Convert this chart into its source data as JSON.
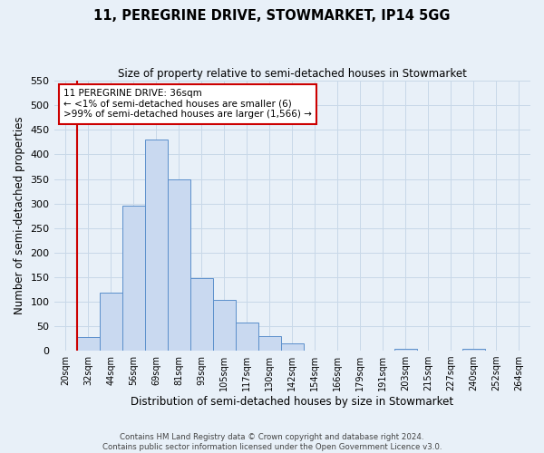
{
  "title": "11, PEREGRINE DRIVE, STOWMARKET, IP14 5GG",
  "subtitle": "Size of property relative to semi-detached houses in Stowmarket",
  "xlabel": "Distribution of semi-detached houses by size in Stowmarket",
  "ylabel": "Number of semi-detached properties",
  "footer_line1": "Contains HM Land Registry data © Crown copyright and database right 2024.",
  "footer_line2": "Contains public sector information licensed under the Open Government Licence v3.0.",
  "bin_labels": [
    "20sqm",
    "32sqm",
    "44sqm",
    "56sqm",
    "69sqm",
    "81sqm",
    "93sqm",
    "105sqm",
    "117sqm",
    "130sqm",
    "142sqm",
    "154sqm",
    "166sqm",
    "179sqm",
    "191sqm",
    "203sqm",
    "215sqm",
    "227sqm",
    "240sqm",
    "252sqm",
    "264sqm"
  ],
  "bar_values": [
    0,
    28,
    118,
    295,
    430,
    350,
    148,
    104,
    57,
    30,
    15,
    0,
    0,
    0,
    0,
    3,
    0,
    0,
    3,
    0,
    0
  ],
  "bar_color": "#c9d9f0",
  "bar_edge_color": "#5b8fcb",
  "vline_color": "#cc0000",
  "ylim": [
    0,
    550
  ],
  "yticks": [
    0,
    50,
    100,
    150,
    200,
    250,
    300,
    350,
    400,
    450,
    500,
    550
  ],
  "annotation_title": "11 PEREGRINE DRIVE: 36sqm",
  "annotation_line1": "← <1% of semi-detached houses are smaller (6)",
  "annotation_line2": ">99% of semi-detached houses are larger (1,566) →",
  "annotation_box_color": "#ffffff",
  "annotation_box_edge": "#cc0000",
  "grid_color": "#c8d8e8",
  "background_color": "#e8f0f8",
  "title_fontsize": 10.5,
  "subtitle_fontsize": 8.5
}
